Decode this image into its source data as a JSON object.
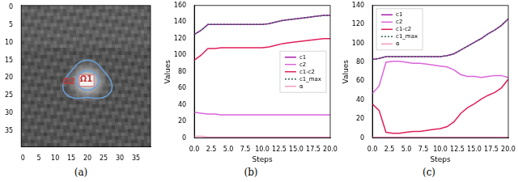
{
  "chart_data": [
    {
      "type": "image",
      "caption": "(a)",
      "xlim": [
        -0.5,
        39.5
      ],
      "ylim": [
        -0.5,
        39.5
      ],
      "xticks": [
        0,
        5,
        10,
        15,
        20,
        25,
        30,
        35
      ],
      "yticks": [
        0,
        5,
        10,
        15,
        20,
        25,
        30,
        35
      ],
      "annotations": [
        "Ω2",
        "Ω1"
      ]
    },
    {
      "type": "line",
      "caption": "(b)",
      "x_label": "Steps",
      "y_label": "Values",
      "x": [
        0,
        1,
        2,
        3,
        4,
        5,
        6,
        7,
        8,
        9,
        10,
        11,
        12,
        13,
        14,
        15,
        16,
        17,
        18,
        19,
        20
      ],
      "xlim": [
        0,
        20
      ],
      "ylim": [
        0,
        160
      ],
      "xticks": [
        {
          "value": 0,
          "label": "0.0"
        },
        {
          "value": 2.5,
          "label": "2.5"
        },
        {
          "value": 5,
          "label": "5.0"
        },
        {
          "value": 7.5,
          "label": "7.5"
        },
        {
          "value": 10,
          "label": "10.0"
        },
        {
          "value": 12.5,
          "label": "12.5"
        },
        {
          "value": 15,
          "label": "15.0"
        },
        {
          "value": 17.5,
          "label": "17.5"
        },
        {
          "value": 20,
          "label": "20.0"
        }
      ],
      "yticks": [
        0,
        20,
        40,
        60,
        80,
        100,
        120,
        140,
        160
      ],
      "grid": false,
      "legend": "center right",
      "series": [
        {
          "name": "c1",
          "color": "#a81fa8",
          "line_style": "solid",
          "values": [
            125,
            130,
            137,
            137,
            137,
            137,
            137,
            137,
            137,
            137,
            137,
            138,
            140,
            142,
            143,
            144,
            145,
            146,
            147,
            148,
            148
          ]
        },
        {
          "name": "c2",
          "color": "#d966d9",
          "line_style": "solid",
          "values": [
            31,
            30,
            29,
            29,
            28,
            28,
            28,
            28,
            28,
            28,
            28,
            28,
            28,
            28,
            28,
            28,
            28,
            28,
            28,
            28,
            28
          ]
        },
        {
          "name": "c1-c2",
          "color": "#e0205a",
          "line_style": "solid",
          "values": [
            94,
            100,
            108,
            108,
            109,
            109,
            109,
            109,
            109,
            109,
            109,
            110,
            112,
            114,
            115,
            116,
            117,
            118,
            119,
            120,
            120
          ]
        },
        {
          "name": "c1_max",
          "color": "#2f5f4f",
          "line_style": "dotted",
          "values": [
            125,
            130,
            137,
            137,
            137,
            137,
            137,
            137,
            137,
            137,
            137,
            138,
            140,
            142,
            143,
            144,
            145,
            146,
            147,
            148,
            148
          ]
        },
        {
          "name": "α",
          "color": "#f59ac0",
          "line_style": "solid",
          "values": [
            2,
            2,
            1,
            1,
            1,
            1,
            1,
            1,
            1,
            1,
            1,
            1,
            1,
            1,
            1,
            1,
            1,
            1,
            1,
            1,
            1
          ]
        }
      ]
    },
    {
      "type": "line",
      "caption": "(c)",
      "x_label": "Steps",
      "y_label": "Values",
      "x": [
        0,
        1,
        2,
        3,
        4,
        5,
        6,
        7,
        8,
        9,
        10,
        11,
        12,
        13,
        14,
        15,
        16,
        17,
        18,
        19,
        20
      ],
      "xlim": [
        0,
        20
      ],
      "ylim": [
        0,
        140
      ],
      "xticks": [
        {
          "value": 0,
          "label": "0.0"
        },
        {
          "value": 2.5,
          "label": "2.5"
        },
        {
          "value": 5,
          "label": "5.0"
        },
        {
          "value": 7.5,
          "label": "7.5"
        },
        {
          "value": 10,
          "label": "10.0"
        },
        {
          "value": 12.5,
          "label": "12.5"
        },
        {
          "value": 15,
          "label": "15.0"
        },
        {
          "value": 17.5,
          "label": "17.5"
        },
        {
          "value": 20,
          "label": "20.0"
        }
      ],
      "yticks": [
        0,
        20,
        40,
        60,
        80,
        100,
        120,
        140
      ],
      "grid": false,
      "legend": "upper left",
      "series": [
        {
          "name": "c1",
          "color": "#a81fa8",
          "line_style": "solid",
          "values": [
            83,
            84,
            86,
            86,
            86,
            86,
            86,
            86,
            86,
            86,
            86,
            87,
            89,
            93,
            97,
            101,
            105,
            110,
            114,
            119,
            126
          ]
        },
        {
          "name": "c2",
          "color": "#d966d9",
          "line_style": "solid",
          "values": [
            47,
            55,
            80,
            81,
            81,
            80,
            79,
            79,
            78,
            77,
            76,
            75,
            72,
            67,
            65,
            65,
            64,
            65,
            66,
            66,
            64
          ]
        },
        {
          "name": "c1-c2",
          "color": "#e0205a",
          "line_style": "solid",
          "values": [
            36,
            29,
            6,
            5,
            5,
            6,
            7,
            7,
            8,
            9,
            10,
            12,
            17,
            26,
            32,
            36,
            41,
            45,
            48,
            53,
            62
          ]
        },
        {
          "name": "c1_max",
          "color": "#2f5f4f",
          "line_style": "dotted",
          "values": [
            83,
            84,
            86,
            86,
            86,
            86,
            86,
            86,
            86,
            86,
            86,
            87,
            89,
            93,
            97,
            101,
            105,
            110,
            114,
            119,
            126
          ]
        },
        {
          "name": "α",
          "color": "#f59ac0",
          "line_style": "solid",
          "values": [
            1,
            1,
            1,
            1,
            1,
            1,
            1,
            1,
            1,
            1,
            1,
            1,
            1,
            1,
            1,
            1,
            1,
            1,
            1,
            1,
            1
          ]
        }
      ]
    }
  ]
}
